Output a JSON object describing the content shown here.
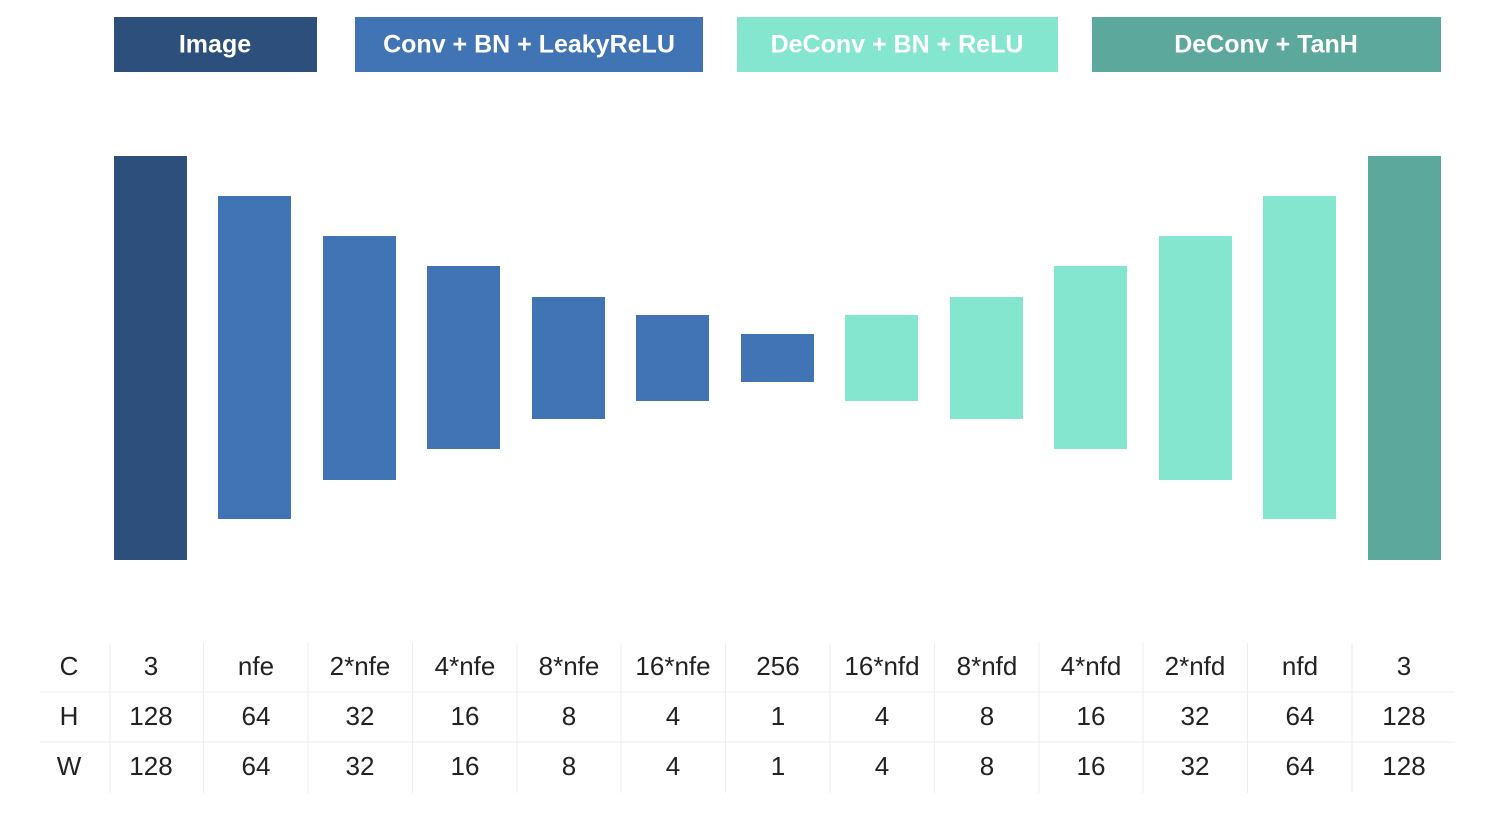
{
  "legend": [
    "Image",
    "Conv + BN + LeakyReLU",
    "DeConv + BN + ReLU",
    "DeConv + TanH"
  ],
  "table": {
    "rows": [
      [
        "C",
        3,
        "nfe",
        "2*nfe",
        "4*nfe",
        "8*nfe",
        "16*nfe",
        256,
        "16*nfd",
        "8*nfd",
        "4*nfd",
        "2*nfd",
        "nfd",
        3
      ],
      [
        "H",
        128,
        64,
        32,
        16,
        8,
        4,
        1,
        4,
        8,
        16,
        32,
        64,
        128
      ],
      [
        "W",
        128,
        64,
        32,
        16,
        8,
        4,
        1,
        4,
        8,
        16,
        32,
        64,
        128
      ]
    ]
  }
}
